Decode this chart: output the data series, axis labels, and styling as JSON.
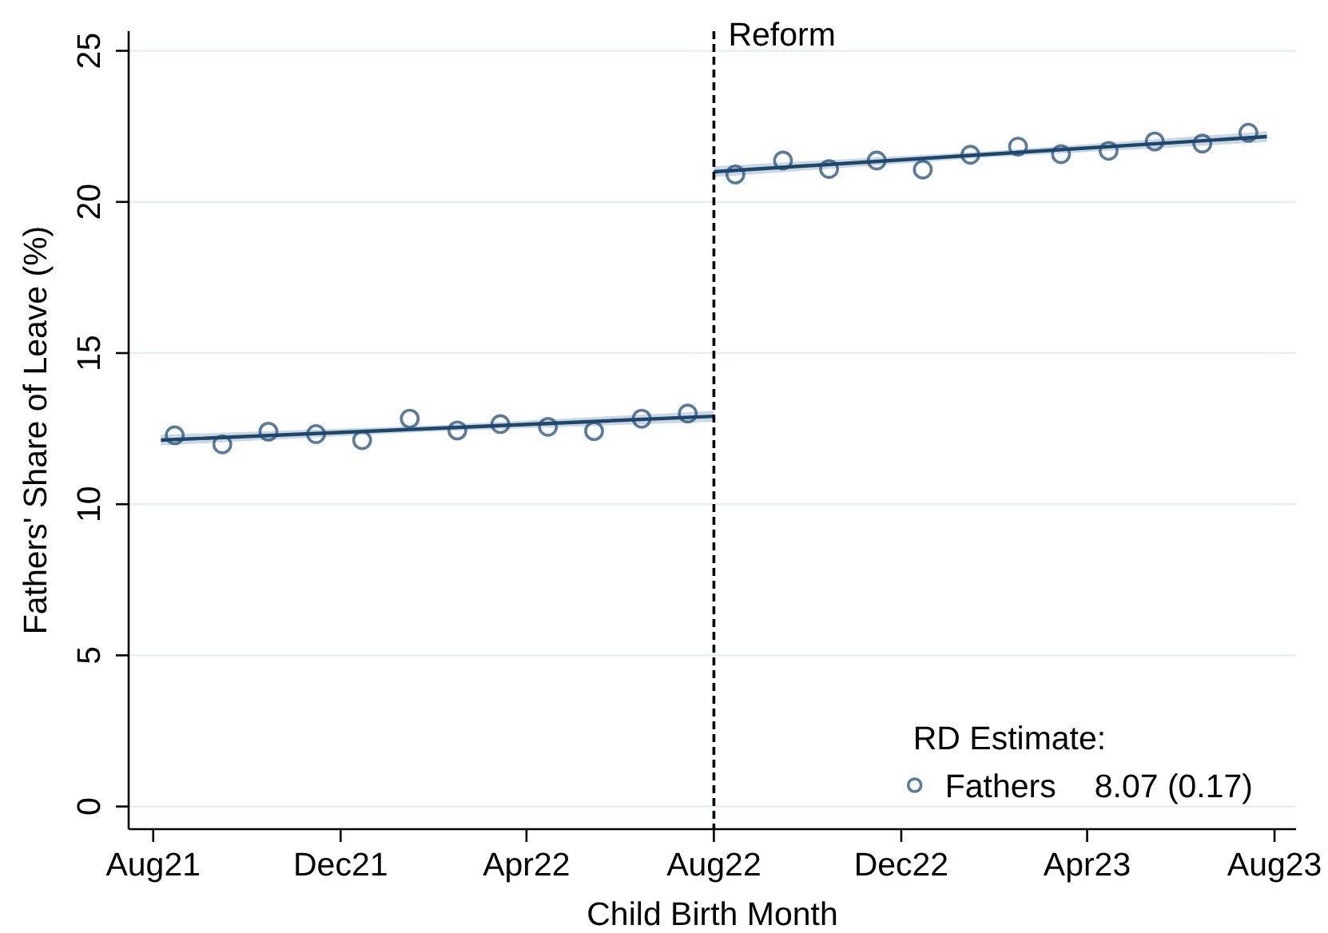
{
  "chart_data": {
    "type": "scatter",
    "xlabel": "Child Birth Month",
    "ylabel": "Fathers' Share of Leave (%)",
    "legend_title": "RD Estimate:",
    "annotations": [
      "8.07 (0.17)"
    ],
    "xlim": [
      "2021-07-16",
      "2023-08-15"
    ],
    "xticks": [
      {
        "value": "2021-08-01",
        "label": "Aug21"
      },
      {
        "value": "2021-12-01",
        "label": "Dec21"
      },
      {
        "value": "2022-04-01",
        "label": "Apr22"
      },
      {
        "value": "2022-08-01",
        "label": "Aug22"
      },
      {
        "value": "2022-12-01",
        "label": "Dec22"
      },
      {
        "value": "2023-04-01",
        "label": "Apr23"
      },
      {
        "value": "2023-08-01",
        "label": "Aug23"
      }
    ],
    "ylim": [
      -0.75,
      25.65
    ],
    "yticks": [
      0,
      5,
      10,
      15,
      20,
      25
    ],
    "grid": "y",
    "legend": "bottom right",
    "ref_lines": [
      {
        "axis": "x",
        "value": "2022-08-01",
        "label": "Reform",
        "color": "#000000",
        "line_style": "dashed"
      }
    ],
    "series": [
      {
        "name": "Fathers",
        "marker": "circle",
        "color": "#5a7b9b",
        "x": [
          "2021-08-15",
          "2021-09-15",
          "2021-10-15",
          "2021-11-15",
          "2021-12-15",
          "2022-01-15",
          "2022-02-15",
          "2022-03-15",
          "2022-04-15",
          "2022-05-15",
          "2022-06-15",
          "2022-07-15",
          "2022-08-15",
          "2022-09-15",
          "2022-10-15",
          "2022-11-15",
          "2022-12-15",
          "2023-01-15",
          "2023-02-15",
          "2023-03-15",
          "2023-04-15",
          "2023-05-15",
          "2023-06-15",
          "2023-07-15"
        ],
        "values": [
          12.28,
          11.98,
          12.4,
          12.32,
          12.12,
          12.83,
          12.44,
          12.65,
          12.56,
          12.42,
          12.83,
          13.0,
          20.91,
          21.37,
          21.09,
          21.37,
          21.07,
          21.56,
          21.83,
          21.58,
          21.69,
          22.0,
          21.93,
          22.29
        ]
      },
      {
        "type": "line",
        "color": "#1a476f",
        "x": [
          "2021-08-06",
          "2022-02-01",
          "2022-08-01"
        ],
        "values": [
          12.12,
          12.51,
          12.91
        ],
        "lower": [
          11.94,
          12.41,
          12.73
        ],
        "upper": [
          12.3,
          12.61,
          13.09
        ]
      },
      {
        "type": "line",
        "color": "#1a476f",
        "x": [
          "2022-08-01",
          "2023-01-28",
          "2023-07-27"
        ],
        "values": [
          21.0,
          21.58,
          22.16
        ],
        "lower": [
          20.82,
          21.48,
          21.98
        ],
        "upper": [
          21.18,
          21.68,
          22.34
        ]
      }
    ]
  }
}
